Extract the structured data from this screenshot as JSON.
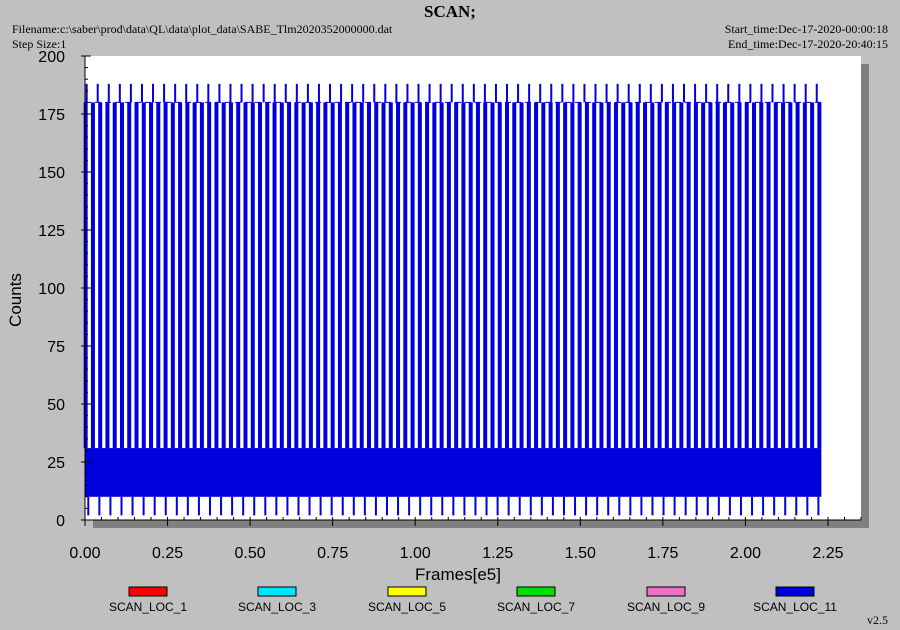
{
  "header": {
    "title": "SCAN;",
    "filename": "Filename:c:\\saber\\prod\\data\\QL\\data\\plot_data\\SABE_Tlm2020352000000.dat",
    "step_size": "Step Size:1",
    "start_time": "Start_time:Dec-17-2020-00:00:18",
    "end_time": "End_time:Dec-17-2020-20:40:15"
  },
  "version": "v2.5",
  "chart_data": {
    "type": "line",
    "title": "SCAN;",
    "xlabel": "Frames[e5]",
    "ylabel": "Counts",
    "xlim": [
      0,
      2.35
    ],
    "ylim": [
      0,
      200
    ],
    "x_ticks": [
      "0.00",
      "0.25",
      "0.50",
      "0.75",
      "1.00",
      "1.25",
      "1.50",
      "1.75",
      "2.00",
      "2.25"
    ],
    "y_ticks": [
      "0",
      "25",
      "50",
      "75",
      "100",
      "125",
      "150",
      "175",
      "200"
    ],
    "grid": false,
    "legend_position": "bottom",
    "legend": [
      {
        "name": "SCAN_LOC_1",
        "color": "#ff0000"
      },
      {
        "name": "SCAN_LOC_3",
        "color": "#00e5ff"
      },
      {
        "name": "SCAN_LOC_5",
        "color": "#ffff00"
      },
      {
        "name": "SCAN_LOC_7",
        "color": "#00dd00"
      },
      {
        "name": "SCAN_LOC_9",
        "color": "#f070c8"
      },
      {
        "name": "SCAN_LOC_11",
        "color": "#0000dd"
      }
    ],
    "series_summary": {
      "name": "SCAN_LOC_11",
      "x_range": [
        0.0,
        2.23
      ],
      "baseline_band": [
        10,
        31
      ],
      "scan_level": 180,
      "peak_level": 188,
      "min_level": 2,
      "scan_period": 0.022,
      "peak_period": 0.0335
    }
  }
}
